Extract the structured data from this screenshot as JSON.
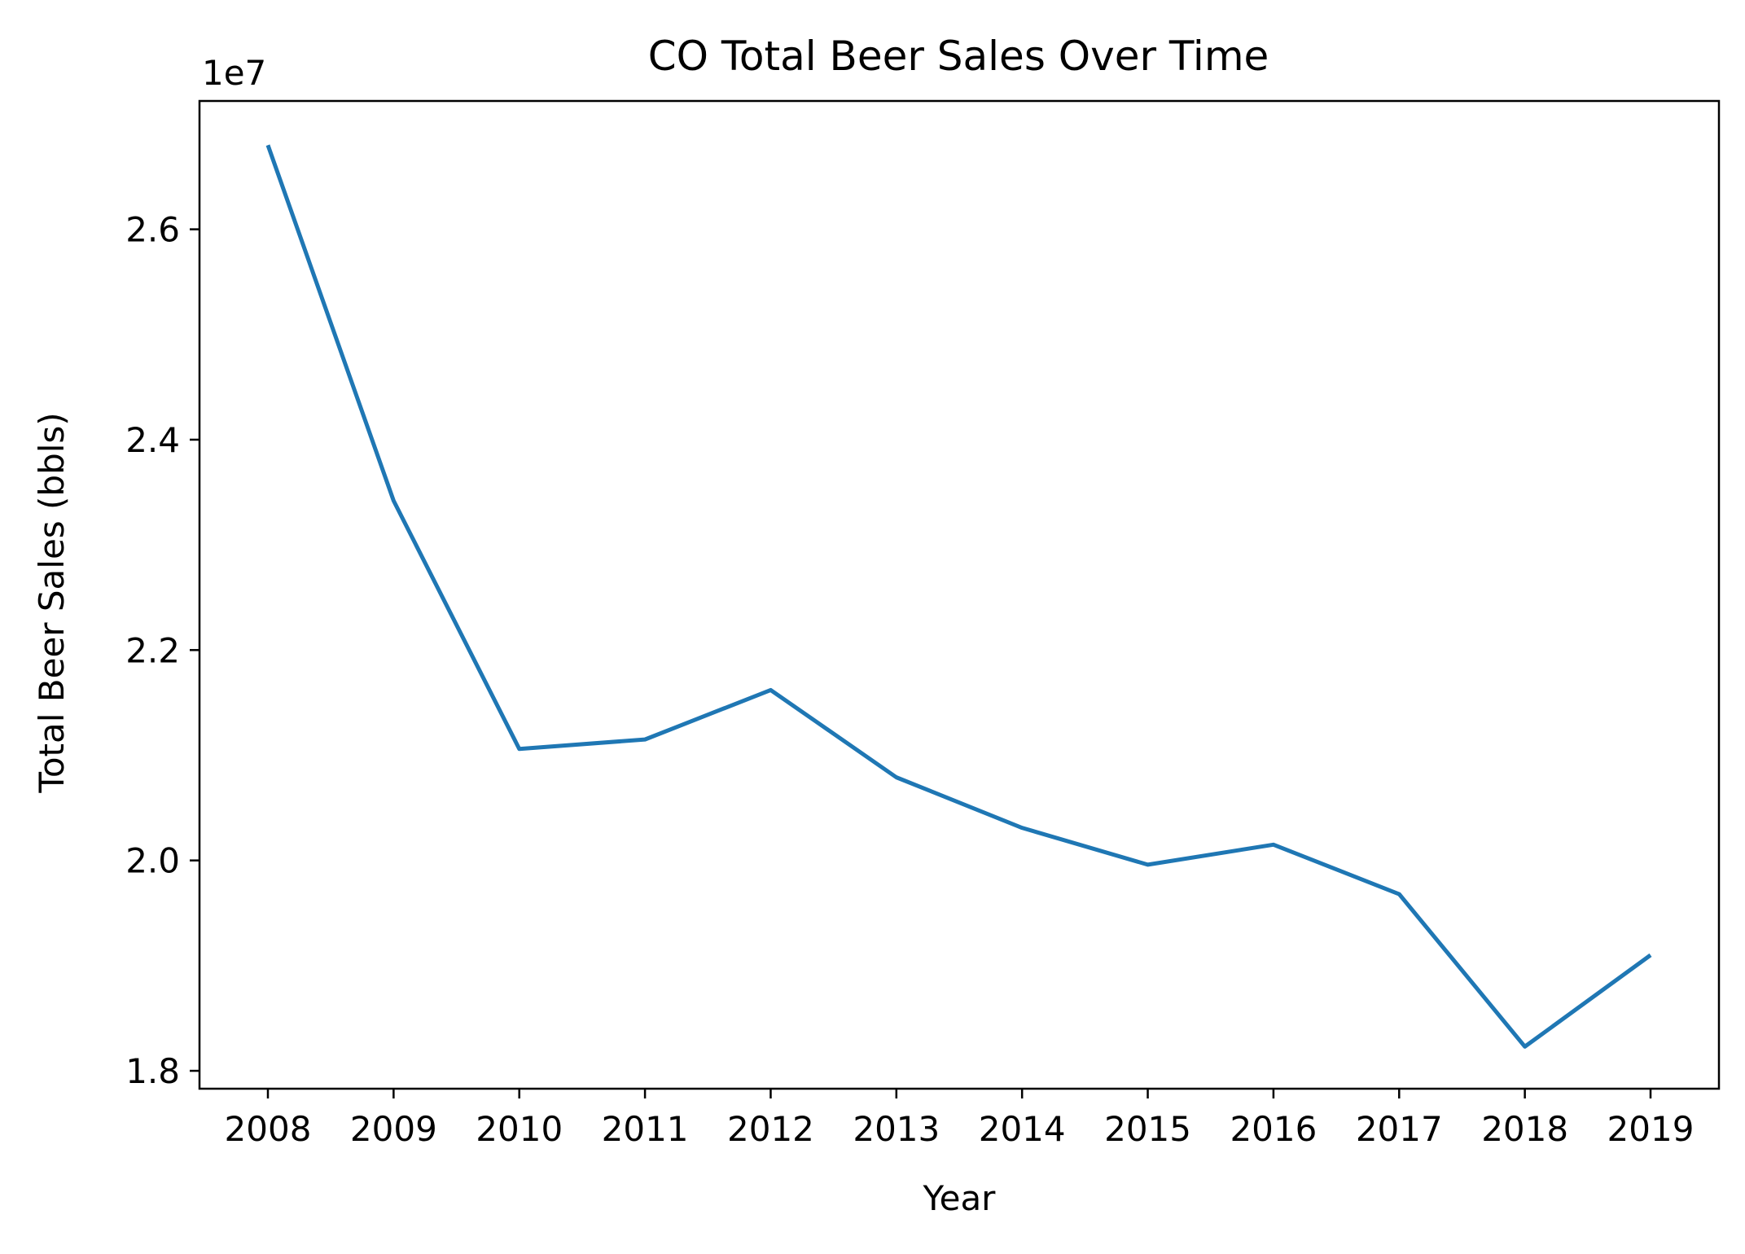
{
  "chart_data": {
    "type": "line",
    "title": "CO Total Beer Sales Over Time",
    "xlabel": "Year",
    "ylabel": "Total Beer Sales (bbls)",
    "y_offset_label": "1e7",
    "x": [
      "2008",
      "2009",
      "2010",
      "2011",
      "2012",
      "2013",
      "2014",
      "2015",
      "2016",
      "2017",
      "2018",
      "2019"
    ],
    "series": [
      {
        "values": [
          26800000,
          23420000,
          21060000,
          21150000,
          21620000,
          20790000,
          20310000,
          19960000,
          20150000,
          19680000,
          18230000,
          19100000
        ]
      }
    ],
    "yticks": [
      18000000,
      20000000,
      22000000,
      24000000,
      26000000
    ],
    "ytick_labels": [
      "1.8",
      "2.0",
      "2.2",
      "2.4",
      "2.6"
    ],
    "ylim": [
      17830000,
      27220000
    ],
    "grid": false,
    "legend": "none",
    "line_color": "#1f77b4"
  }
}
